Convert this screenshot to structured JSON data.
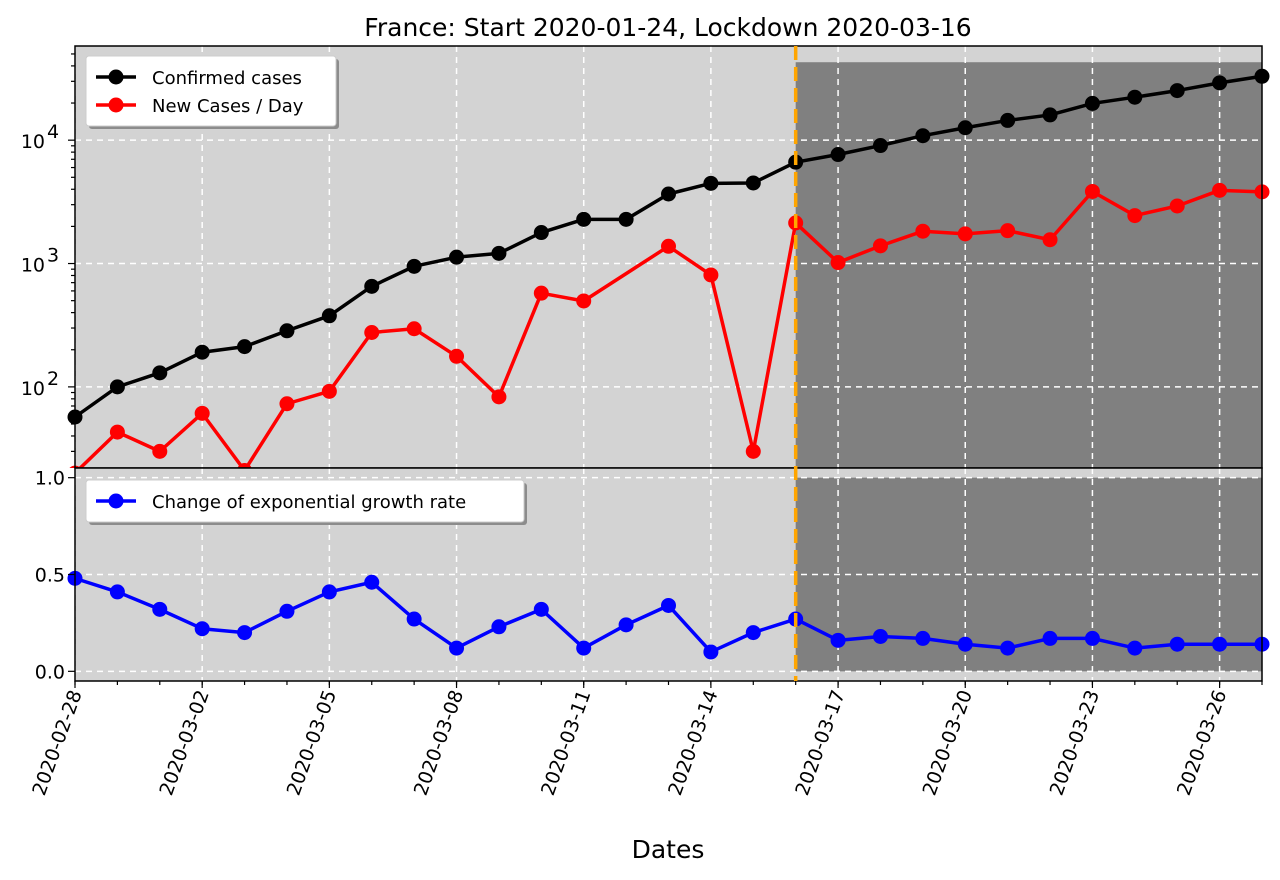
{
  "chart_data": {
    "type": "line",
    "title": "France: Start 2020-01-24, Lockdown 2020-03-16",
    "xlabel": "Dates",
    "x": [
      "2020-02-28",
      "2020-02-29",
      "2020-03-01",
      "2020-03-02",
      "2020-03-03",
      "2020-03-04",
      "2020-03-05",
      "2020-03-06",
      "2020-03-07",
      "2020-03-08",
      "2020-03-09",
      "2020-03-10",
      "2020-03-11",
      "2020-03-12",
      "2020-03-13",
      "2020-03-14",
      "2020-03-15",
      "2020-03-16",
      "2020-03-17",
      "2020-03-18",
      "2020-03-19",
      "2020-03-20",
      "2020-03-21",
      "2020-03-22",
      "2020-03-23",
      "2020-03-24",
      "2020-03-25",
      "2020-03-26",
      "2020-03-27"
    ],
    "x_tick_labels": [
      "2020-02-28",
      "2020-03-02",
      "2020-03-05",
      "2020-03-08",
      "2020-03-11",
      "2020-03-14",
      "2020-03-17",
      "2020-03-20",
      "2020-03-23",
      "2020-03-26"
    ],
    "lockdown_date": "2020-03-16",
    "grid": true,
    "legend_placement": "top-left",
    "top_panel": {
      "yscale": "log",
      "ylim": [
        22,
        58000
      ],
      "y_tick_labels": [
        {
          "value": 100,
          "base": "10",
          "exp": "2"
        },
        {
          "value": 1000,
          "base": "10",
          "exp": "3"
        },
        {
          "value": 10000,
          "base": "10",
          "exp": "4"
        }
      ],
      "series": [
        {
          "name": "Confirmed cases",
          "color": "#000000",
          "values": [
            57,
            100,
            130,
            191,
            212,
            285,
            377,
            653,
            949,
            1126,
            1209,
            1784,
            2281,
            2281,
            3661,
            4469,
            4499,
            6633,
            7652,
            9043,
            10871,
            12612,
            14459,
            16018,
            19856,
            22304,
            25233,
            29155,
            32964
          ]
        },
        {
          "name": "New Cases / Day",
          "color": "#ff0000",
          "values": [
            20,
            43,
            30,
            61,
            21,
            73,
            92,
            276,
            296,
            177,
            83,
            575,
            497,
            0,
            1380,
            808,
            30,
            2134,
            1019,
            1391,
            1828,
            1741,
            1847,
            1559,
            3838,
            2448,
            2929,
            3922,
            3809
          ]
        }
      ]
    },
    "bottom_panel": {
      "ylim": [
        -0.05,
        1.05
      ],
      "y_tick_labels": [
        "0.0",
        "0.5",
        "1.0"
      ],
      "series": [
        {
          "name": "Change of exponential growth rate",
          "color": "#0000ff",
          "values": [
            0.48,
            0.41,
            0.32,
            0.22,
            0.2,
            0.31,
            0.41,
            0.46,
            0.27,
            0.12,
            0.23,
            0.32,
            0.12,
            0.24,
            0.34,
            0.1,
            0.2,
            0.27,
            0.16,
            0.18,
            0.17,
            0.14,
            0.12,
            0.17,
            0.17,
            0.12,
            0.14,
            0.14,
            0.14
          ]
        }
      ]
    },
    "colors": {
      "axes_bg": "#d3d3d3",
      "lockdown_shade": "#808080",
      "lockdown_line": "#ffa500",
      "grid": "#ffffff"
    }
  }
}
